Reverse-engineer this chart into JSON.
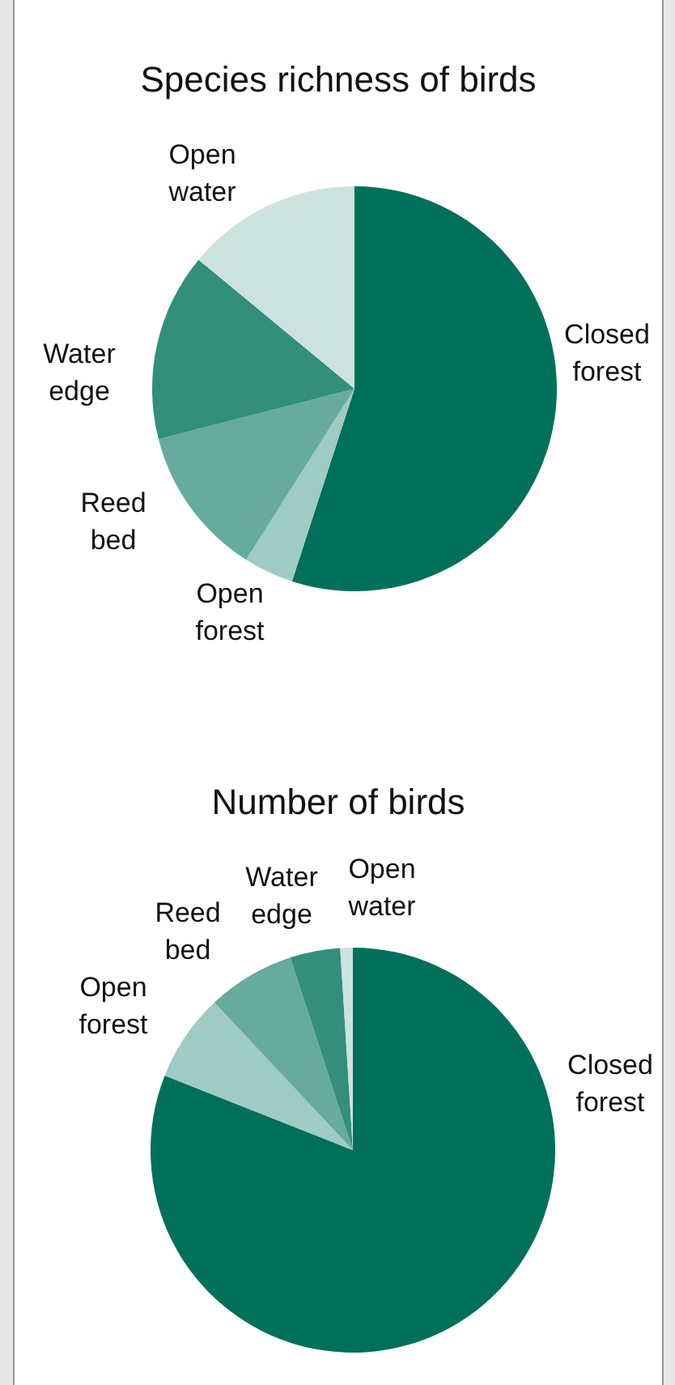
{
  "chart_data": [
    {
      "type": "pie",
      "title": "Species richness of birds",
      "categories": [
        "Closed forest",
        "Open forest",
        "Reed bed",
        "Water edge",
        "Open water"
      ],
      "values": [
        55,
        4,
        12,
        15,
        14
      ],
      "colors": [
        "#00705a",
        "#9ecbc4",
        "#66ab9d",
        "#338e7c",
        "#cce2de"
      ],
      "legend": false
    },
    {
      "type": "pie",
      "title": "Number of birds",
      "categories": [
        "Closed forest",
        "Open forest",
        "Reed bed",
        "Water edge",
        "Open water"
      ],
      "values": [
        81,
        7,
        7,
        4,
        1
      ],
      "colors": [
        "#00705a",
        "#9ecbc4",
        "#66ab9d",
        "#338e7c",
        "#cce2de"
      ],
      "legend": false
    }
  ]
}
